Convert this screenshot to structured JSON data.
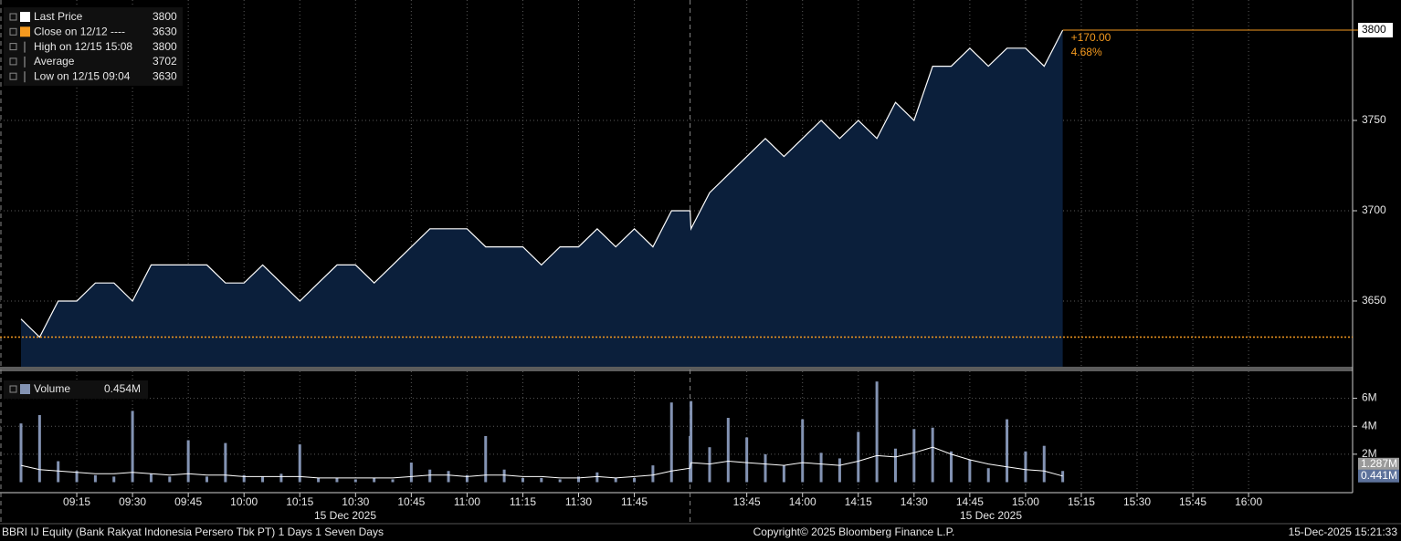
{
  "chart_data": [
    {
      "type": "area",
      "x": [
        "09:00",
        "09:05",
        "09:10",
        "09:15",
        "09:20",
        "09:25",
        "09:30",
        "09:35",
        "09:40",
        "09:45",
        "09:50",
        "09:55",
        "10:00",
        "10:05",
        "10:10",
        "10:15",
        "10:20",
        "10:25",
        "10:30",
        "10:35",
        "10:40",
        "10:45",
        "10:50",
        "10:55",
        "11:00",
        "11:05",
        "11:10",
        "11:15",
        "11:20",
        "11:25",
        "11:30",
        "11:35",
        "11:40",
        "11:45",
        "11:50",
        "11:55",
        "12:00",
        "13:30",
        "13:35",
        "13:40",
        "13:45",
        "13:50",
        "13:55",
        "14:00",
        "14:05",
        "14:10",
        "14:15",
        "14:20",
        "14:25",
        "14:30",
        "14:35",
        "14:40",
        "14:45",
        "14:50",
        "14:55",
        "15:00",
        "15:05",
        "15:10"
      ],
      "series": [
        {
          "name": "Last Price",
          "color": "#ffffff",
          "fill": "#0b1f3b",
          "values": [
            3640,
            3630,
            3650,
            3650,
            3660,
            3660,
            3650,
            3670,
            3670,
            3670,
            3670,
            3660,
            3660,
            3670,
            3660,
            3650,
            3660,
            3670,
            3670,
            3660,
            3670,
            3680,
            3690,
            3690,
            3690,
            3680,
            3680,
            3680,
            3670,
            3680,
            3680,
            3690,
            3680,
            3690,
            3680,
            3700,
            3700,
            3690,
            3710,
            3720,
            3730,
            3740,
            3730,
            3740,
            3750,
            3740,
            3750,
            3740,
            3760,
            3750,
            3780,
            3780,
            3790,
            3780,
            3790,
            3790,
            3780,
            3800
          ]
        }
      ],
      "legend": [
        {
          "name": "Last Price",
          "value": 3800,
          "color": "#ffffff"
        },
        {
          "name": "Close on 12/12 ----",
          "value": 3630,
          "color": "#f59a1f"
        },
        {
          "name": "High on 12/15 15:08",
          "value": 3800
        },
        {
          "name": "Average",
          "value": 3702
        },
        {
          "name": "Low on 12/15 09:04",
          "value": 3630
        }
      ],
      "change": {
        "value": 170,
        "label": "+170.00"
      },
      "change_pct": {
        "value": 4.68,
        "label": "4.68%"
      },
      "ylim": [
        3613.6,
        3816.7
      ],
      "yticks": [
        3650,
        3700,
        3750
      ],
      "xticks": [
        "09:15",
        "09:30",
        "09:45",
        "10:00",
        "10:15",
        "10:30",
        "10:45",
        "11:00",
        "11:15",
        "11:30",
        "11:45",
        "13:45",
        "14:00",
        "14:15",
        "14:30",
        "14:45",
        "15:00",
        "15:15",
        "15:30",
        "15:45",
        "16:00"
      ],
      "date_labels": [
        "15 Dec 2025",
        "15 Dec 2025"
      ],
      "grid": true
    },
    {
      "type": "bar",
      "x": [
        "09:00",
        "09:05",
        "09:10",
        "09:15",
        "09:20",
        "09:25",
        "09:30",
        "09:35",
        "09:40",
        "09:45",
        "09:50",
        "09:55",
        "10:00",
        "10:05",
        "10:10",
        "10:15",
        "10:20",
        "10:25",
        "10:30",
        "10:35",
        "10:40",
        "10:45",
        "10:50",
        "10:55",
        "11:00",
        "11:05",
        "11:10",
        "11:15",
        "11:20",
        "11:25",
        "11:30",
        "11:35",
        "11:40",
        "11:45",
        "11:50",
        "11:55",
        "12:00",
        "13:30",
        "13:35",
        "13:40",
        "13:45",
        "13:50",
        "13:55",
        "14:00",
        "14:05",
        "14:10",
        "14:15",
        "14:20",
        "14:25",
        "14:30",
        "14:35",
        "14:40",
        "14:45",
        "14:50",
        "14:55",
        "15:00",
        "15:05",
        "15:10"
      ],
      "series": [
        {
          "name": "Volume",
          "color": "#8393b3",
          "values": [
            4.2,
            4.8,
            1.5,
            0.8,
            0.5,
            0.4,
            5.1,
            0.6,
            0.4,
            3.0,
            0.4,
            2.8,
            0.5,
            0.4,
            0.6,
            2.7,
            0.3,
            0.3,
            0.2,
            0.3,
            0.2,
            1.4,
            0.9,
            0.8,
            0.5,
            3.3,
            0.9,
            0.3,
            0.3,
            0.2,
            0.4,
            0.7,
            0.3,
            0.3,
            1.2,
            5.7,
            3.3,
            5.8,
            2.5,
            4.6,
            3.2,
            2.0,
            1.2,
            4.5,
            2.1,
            1.7,
            3.6,
            7.2,
            2.4,
            3.8,
            3.9,
            2.2,
            1.6,
            1.0,
            4.5,
            2.2,
            2.6,
            0.8
          ]
        },
        {
          "type": "line",
          "color": "#ffffff",
          "values": [
            1.2,
            0.9,
            0.8,
            0.7,
            0.6,
            0.6,
            0.7,
            0.6,
            0.5,
            0.6,
            0.5,
            0.5,
            0.4,
            0.4,
            0.4,
            0.4,
            0.3,
            0.3,
            0.3,
            0.3,
            0.3,
            0.4,
            0.5,
            0.5,
            0.4,
            0.5,
            0.5,
            0.4,
            0.4,
            0.3,
            0.3,
            0.4,
            0.3,
            0.4,
            0.5,
            0.8,
            1.0,
            1.4,
            1.3,
            1.5,
            1.4,
            1.3,
            1.2,
            1.4,
            1.3,
            1.2,
            1.5,
            1.9,
            1.8,
            2.1,
            2.5,
            2.0,
            1.6,
            1.3,
            1.1,
            0.9,
            0.8,
            0.441
          ]
        }
      ],
      "legend_value": {
        "value": 0.454,
        "label": "0.454M"
      },
      "right_labels": [
        {
          "value": 1.287,
          "label": "1.287M",
          "color": "#9a9a9a"
        },
        {
          "value": 0.441,
          "label": "0.441M",
          "color": "#5d729b"
        }
      ],
      "ylim": [
        -0.75,
        7.93
      ],
      "yticks": [
        {
          "value": 2,
          "label": "2M"
        },
        {
          "value": 4,
          "label": "4M"
        },
        {
          "value": 6,
          "label": "6M"
        }
      ],
      "grid": true
    }
  ],
  "footer": {
    "left": "BBRI IJ Equity (Bank Rakyat Indonesia Persero Tbk PT) 1 Days 1 Seven Days",
    "center": "Copyright© 2025 Bloomberg Finance L.P.",
    "right": "15-Dec-2025 15:21:33"
  }
}
